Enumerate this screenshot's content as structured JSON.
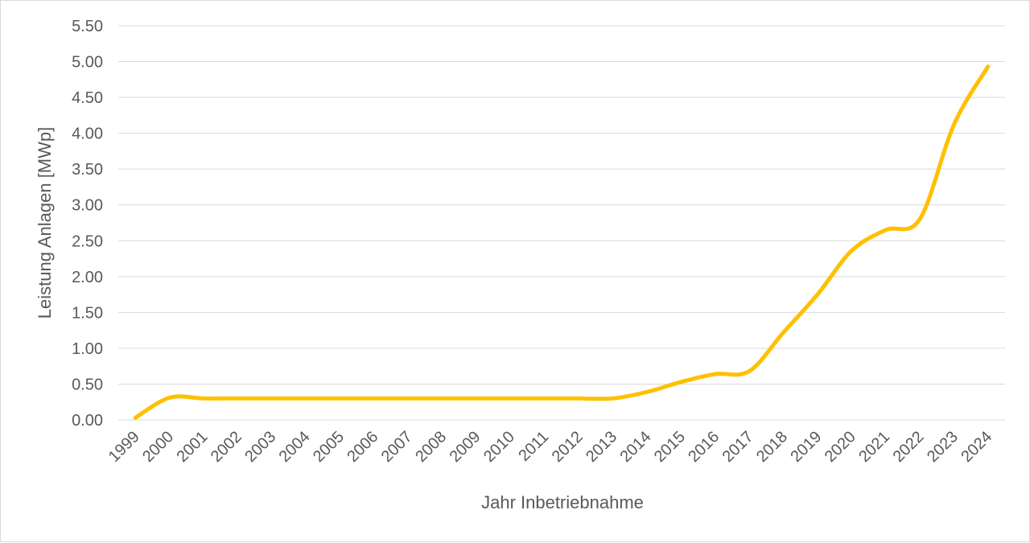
{
  "chart_data": {
    "type": "line",
    "title": "",
    "xlabel": "Jahr Inbetriebnahme",
    "ylabel": "Leistung Anlagen [MWp]",
    "ylim": [
      0,
      5.5
    ],
    "yticks": [
      "0.00",
      "0.50",
      "1.00",
      "1.50",
      "2.00",
      "2.50",
      "3.00",
      "3.50",
      "4.00",
      "4.50",
      "5.00",
      "5.50"
    ],
    "grid": true,
    "legend": "none",
    "categories": [
      "1999",
      "2000",
      "2001",
      "2002",
      "2003",
      "2004",
      "2005",
      "2006",
      "2007",
      "2008",
      "2009",
      "2010",
      "2011",
      "2012",
      "2013",
      "2014",
      "2015",
      "2016",
      "2017",
      "2018",
      "2019",
      "2020",
      "2021",
      "2022",
      "2023",
      "2024"
    ],
    "series": [
      {
        "color": "#ffc000",
        "values": [
          0.03,
          0.31,
          0.3,
          0.3,
          0.3,
          0.3,
          0.3,
          0.3,
          0.3,
          0.3,
          0.3,
          0.3,
          0.3,
          0.3,
          0.3,
          0.39,
          0.53,
          0.64,
          0.68,
          1.22,
          1.75,
          2.36,
          2.65,
          2.8,
          4.12,
          4.93
        ]
      }
    ]
  }
}
